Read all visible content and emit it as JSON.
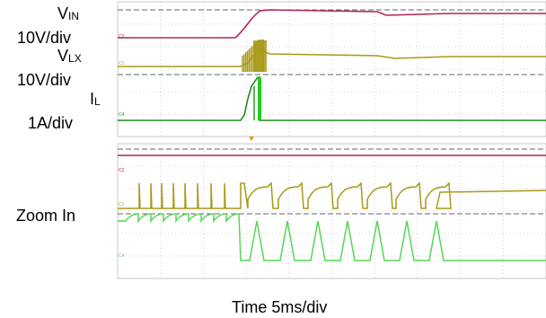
{
  "labels": {
    "vin_main": "V",
    "vin_sub": "IN",
    "vin_scale": "10V/div",
    "vlx_main": "V",
    "vlx_sub": "LX",
    "vlx_scale": "10V/div",
    "il_main": "I",
    "il_sub": "L",
    "il_scale": "1A/div",
    "zoom": "Zoom In",
    "time": "Time 5ms/div"
  },
  "colors": {
    "vin": "#b0245c",
    "vlx": "#a89a18",
    "il_top": "#1f8c1f",
    "il_zoom": "#55d655",
    "grid": "#c8c8c8",
    "ref": "#666666"
  },
  "channel_markers": [
    "C2",
    "C1",
    "C4",
    "C2",
    "C1",
    "C4"
  ],
  "chart_data": [
    {
      "type": "line",
      "panel": "overview",
      "x_unit": "div",
      "x_range": [
        0,
        10
      ],
      "series": [
        {
          "name": "VIN",
          "values": [
            [
              0,
              0
            ],
            [
              2.35,
              0
            ],
            [
              2.7,
              1.1
            ],
            [
              3.0,
              1.35
            ],
            [
              5.5,
              1.3
            ],
            [
              6.0,
              1.2
            ],
            [
              8.0,
              1.25
            ],
            [
              10,
              1.25
            ]
          ]
        },
        {
          "name": "VLX",
          "values": [
            [
              0,
              0
            ],
            [
              2.6,
              0
            ],
            [
              2.8,
              1.0
            ],
            [
              3.1,
              1.2
            ],
            [
              6.0,
              1.15
            ],
            [
              6.5,
              1.05
            ],
            [
              10,
              1.1
            ]
          ]
        },
        {
          "name": "IL",
          "values": [
            [
              0,
              0
            ],
            [
              2.8,
              0
            ],
            [
              2.9,
              1.2
            ],
            [
              3.2,
              2.0
            ],
            [
              3.3,
              2.1
            ],
            [
              3.3,
              0
            ],
            [
              10,
              0
            ]
          ]
        }
      ]
    },
    {
      "type": "line",
      "panel": "zoom",
      "x_unit": "div",
      "x_range": [
        0,
        10
      ],
      "pulse_count": 7,
      "series": [
        {
          "name": "VIN",
          "values": [
            [
              0,
              0
            ],
            [
              10,
              0
            ]
          ]
        },
        {
          "name": "VLX",
          "values": [
            [
              0,
              0
            ],
            [
              2.8,
              0
            ],
            [
              2.8,
              1
            ],
            [
              7.0,
              1
            ],
            [
              7.0,
              0
            ],
            [
              10,
              0
            ]
          ]
        },
        {
          "name": "IL",
          "values": [
            [
              0,
              0
            ],
            [
              2.8,
              0
            ],
            [
              2.8,
              -1
            ],
            [
              7.0,
              -1
            ],
            [
              7.0,
              -1
            ],
            [
              10,
              -1
            ]
          ]
        }
      ]
    }
  ]
}
